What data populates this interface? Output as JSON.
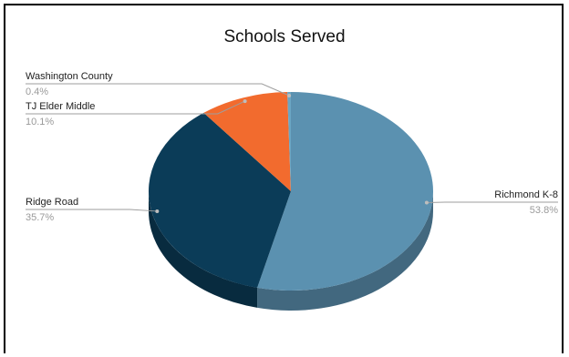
{
  "chart_data": {
    "type": "pie",
    "style": "3d",
    "title": "Schools Served",
    "legend": "none",
    "slices": [
      {
        "label": "Richmond K-8",
        "value": 53.8,
        "value_label": "53.8%",
        "color": "#5b91b0"
      },
      {
        "label": "Ridge Road",
        "value": 35.7,
        "value_label": "35.7%",
        "color": "#0b3c58"
      },
      {
        "label": "TJ Elder Middle",
        "value": 10.1,
        "value_label": "10.1%",
        "color": "#f26b2e"
      },
      {
        "label": "Washington County",
        "value": 0.4,
        "value_label": "0.4%",
        "color": "#6aa6c4"
      }
    ]
  }
}
